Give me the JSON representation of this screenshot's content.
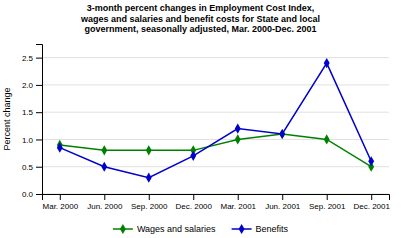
{
  "chart_data": {
    "type": "line",
    "title": "3-month percent changes in Employment Cost Index,\nwages and salaries and benefit costs for State and local\ngovernment, seasonally adjusted, Mar. 2000-Dec. 2001",
    "y_label": "Percent change",
    "categories": [
      "Mar. 2000",
      "Jun. 2000",
      "Sep. 2000",
      "Dec. 2000",
      "Mar. 2001",
      "Jun. 2001",
      "Sep. 2001",
      "Dec. 2001"
    ],
    "series": [
      {
        "name": "Wages and salaries",
        "color": "#008000",
        "marker": "diamond",
        "values": [
          0.9,
          0.8,
          0.8,
          0.8,
          1.0,
          1.1,
          1.0,
          0.5
        ]
      },
      {
        "name": "Benefits",
        "color": "#0000CC",
        "marker": "diamond",
        "values": [
          0.85,
          0.5,
          0.3,
          0.7,
          1.2,
          1.1,
          2.4,
          0.6
        ]
      }
    ],
    "ylim": [
      0.0,
      2.75
    ],
    "yticks": [
      {
        "value": 0.0,
        "label": "0.0"
      },
      0.5,
      {
        "value": 1.0,
        "label": "1.0"
      },
      1.5,
      {
        "value": 2.0,
        "label": "2.0"
      },
      2.5
    ],
    "grid": true,
    "legend": "bottom"
  }
}
